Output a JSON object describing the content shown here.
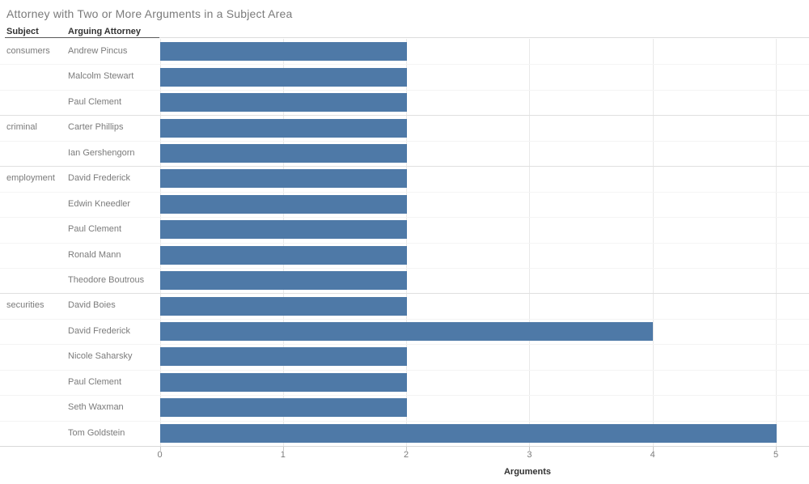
{
  "title": "Attorney with Two or More Arguments in a Subject Area",
  "columns": {
    "subject": "Subject",
    "attorney": "Arguing Attorney"
  },
  "chart_data": {
    "type": "bar",
    "orientation": "horizontal",
    "title": "Attorney with Two or More Arguments in a Subject Area",
    "xlabel": "Arguments",
    "ylabel": "",
    "x_ticks": [
      0,
      1,
      2,
      3,
      4,
      5
    ],
    "xlim": [
      0,
      5.27
    ],
    "grid": "vertical",
    "bar_color": "#4e79a7",
    "groups": [
      {
        "subject": "consumers",
        "rows": [
          {
            "attorney": "Andrew Pincus",
            "value": 2
          },
          {
            "attorney": "Malcolm Stewart",
            "value": 2
          },
          {
            "attorney": "Paul Clement",
            "value": 2
          }
        ]
      },
      {
        "subject": "criminal",
        "rows": [
          {
            "attorney": "Carter Phillips",
            "value": 2
          },
          {
            "attorney": "Ian Gershengorn",
            "value": 2
          }
        ]
      },
      {
        "subject": "employment",
        "rows": [
          {
            "attorney": "David Frederick",
            "value": 2
          },
          {
            "attorney": "Edwin Kneedler",
            "value": 2
          },
          {
            "attorney": "Paul Clement",
            "value": 2
          },
          {
            "attorney": "Ronald Mann",
            "value": 2
          },
          {
            "attorney": "Theodore Boutrous",
            "value": 2
          }
        ]
      },
      {
        "subject": "securities",
        "rows": [
          {
            "attorney": "David Boies",
            "value": 2
          },
          {
            "attorney": "David Frederick",
            "value": 4
          },
          {
            "attorney": "Nicole Saharsky",
            "value": 2
          },
          {
            "attorney": "Paul Clement",
            "value": 2
          },
          {
            "attorney": "Seth Waxman",
            "value": 2
          },
          {
            "attorney": "Tom Goldstein",
            "value": 5
          }
        ]
      }
    ]
  }
}
